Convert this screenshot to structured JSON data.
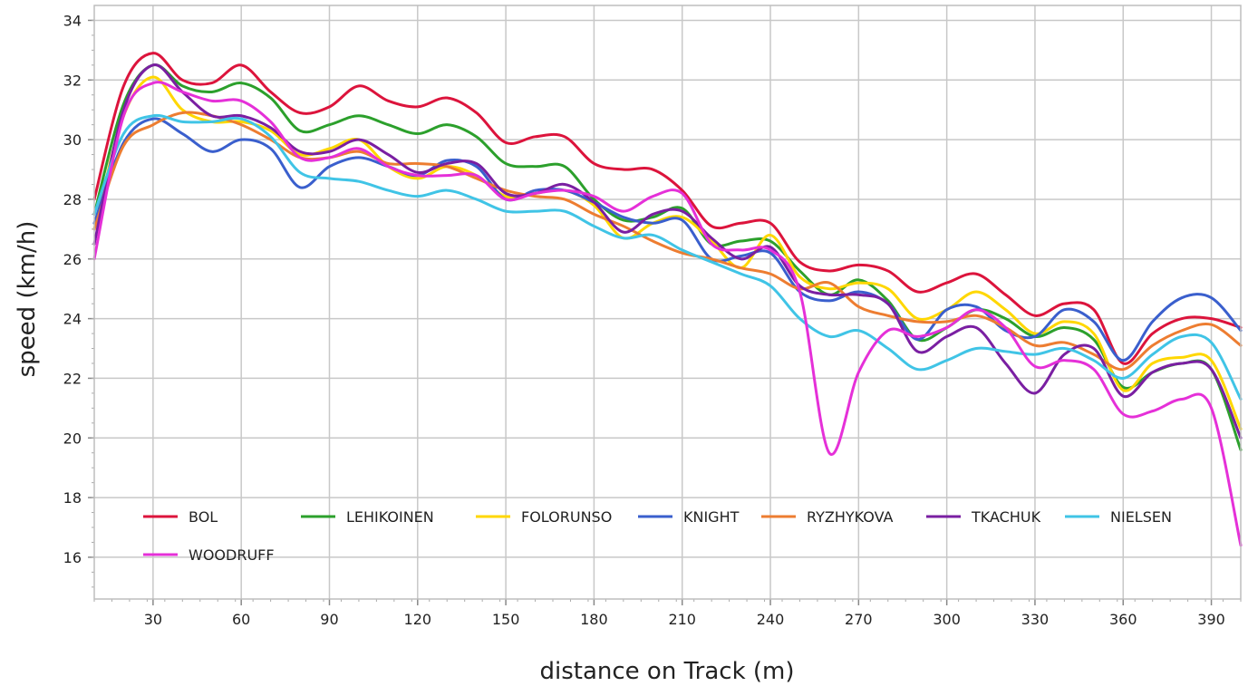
{
  "chart_data": {
    "type": "line",
    "xlabel": "distance on Track (m)",
    "ylabel": "speed (km/h)",
    "xlim": [
      10,
      400
    ],
    "ylim": [
      14.6,
      34.5
    ],
    "xticks": [
      30,
      60,
      90,
      120,
      150,
      180,
      210,
      240,
      270,
      300,
      330,
      360,
      390
    ],
    "yticks": [
      16,
      18,
      20,
      22,
      24,
      26,
      28,
      30,
      32,
      34
    ],
    "grid": true,
    "legend_position": "bottom-left",
    "x": [
      10,
      20,
      30,
      40,
      50,
      60,
      70,
      80,
      90,
      100,
      110,
      120,
      130,
      140,
      150,
      160,
      170,
      180,
      190,
      200,
      210,
      220,
      230,
      240,
      250,
      260,
      270,
      280,
      290,
      300,
      310,
      320,
      330,
      340,
      350,
      360,
      370,
      380,
      390,
      400
    ],
    "series": [
      {
        "name": "BOL",
        "color": "#dc143c",
        "values": [
          28.0,
          31.8,
          32.9,
          32.0,
          31.9,
          32.5,
          31.6,
          30.9,
          31.1,
          31.8,
          31.3,
          31.1,
          31.4,
          30.9,
          29.9,
          30.1,
          30.1,
          29.2,
          29.0,
          29.0,
          28.3,
          27.1,
          27.2,
          27.2,
          25.9,
          25.6,
          25.8,
          25.6,
          24.9,
          25.2,
          25.5,
          24.8,
          24.1,
          24.5,
          24.3,
          22.5,
          23.5,
          24.0,
          24.0,
          23.7
        ]
      },
      {
        "name": "LEHIKOINEN",
        "color": "#2ca02c",
        "values": [
          27.5,
          31.2,
          32.5,
          31.8,
          31.6,
          31.9,
          31.4,
          30.3,
          30.5,
          30.8,
          30.5,
          30.2,
          30.5,
          30.1,
          29.2,
          29.1,
          29.1,
          28.0,
          27.3,
          27.4,
          27.7,
          26.5,
          26.6,
          26.6,
          25.6,
          24.8,
          25.3,
          24.6,
          23.3,
          23.7,
          24.3,
          24.0,
          23.4,
          23.7,
          23.3,
          21.7,
          22.2,
          22.5,
          22.3,
          19.6
        ]
      },
      {
        "name": "FOLORUNSO",
        "color": "#ffd700",
        "values": [
          27.0,
          30.8,
          32.1,
          31.0,
          30.6,
          30.6,
          30.3,
          29.5,
          29.7,
          30.0,
          29.1,
          28.7,
          29.1,
          28.8,
          28.1,
          28.2,
          28.3,
          27.8,
          26.7,
          27.2,
          27.4,
          26.6,
          25.7,
          26.8,
          25.4,
          25.0,
          25.2,
          25.0,
          24.0,
          24.3,
          24.9,
          24.3,
          23.5,
          23.9,
          23.5,
          21.6,
          22.5,
          22.7,
          22.6,
          20.3
        ]
      },
      {
        "name": "KNIGHT",
        "color": "#3a5fcd",
        "values": [
          27.2,
          29.9,
          30.7,
          30.2,
          29.6,
          30.0,
          29.7,
          28.4,
          29.1,
          29.4,
          29.1,
          28.8,
          29.3,
          29.1,
          28.0,
          28.3,
          28.3,
          27.9,
          27.4,
          27.2,
          27.3,
          26.0,
          26.1,
          26.2,
          24.9,
          24.6,
          24.9,
          24.5,
          23.3,
          24.3,
          24.4,
          23.6,
          23.4,
          24.3,
          23.9,
          22.6,
          23.9,
          24.7,
          24.7,
          23.6
        ]
      },
      {
        "name": "RYZHYKOVA",
        "color": "#ed7d31",
        "values": [
          27.0,
          29.8,
          30.5,
          30.9,
          30.8,
          30.5,
          30.0,
          29.4,
          29.4,
          29.6,
          29.2,
          29.2,
          29.1,
          28.7,
          28.3,
          28.1,
          28.0,
          27.5,
          27.1,
          26.6,
          26.2,
          26.0,
          25.7,
          25.5,
          25.0,
          25.2,
          24.4,
          24.1,
          23.9,
          23.9,
          24.1,
          23.7,
          23.1,
          23.2,
          22.8,
          22.3,
          23.1,
          23.6,
          23.8,
          23.1
        ]
      },
      {
        "name": "TKACHUK",
        "color": "#7a1fa2",
        "values": [
          26.5,
          31.0,
          32.5,
          31.6,
          30.8,
          30.8,
          30.4,
          29.6,
          29.6,
          30.0,
          29.5,
          28.9,
          29.2,
          29.2,
          28.2,
          28.2,
          28.5,
          27.9,
          26.9,
          27.5,
          27.6,
          26.7,
          26.0,
          26.4,
          25.1,
          24.8,
          24.8,
          24.5,
          22.9,
          23.4,
          23.7,
          22.5,
          21.5,
          22.8,
          23.0,
          21.4,
          22.2,
          22.5,
          22.3,
          20.0
        ]
      },
      {
        "name": "NIELSEN",
        "color": "#40c4e6",
        "values": [
          27.5,
          30.2,
          30.8,
          30.6,
          30.6,
          30.7,
          30.1,
          28.9,
          28.7,
          28.6,
          28.3,
          28.1,
          28.3,
          28.0,
          27.6,
          27.6,
          27.6,
          27.1,
          26.7,
          26.8,
          26.3,
          25.9,
          25.5,
          25.1,
          24.0,
          23.4,
          23.6,
          23.0,
          22.3,
          22.6,
          23.0,
          22.9,
          22.8,
          23.0,
          22.6,
          22.0,
          22.8,
          23.4,
          23.2,
          21.3
        ]
      },
      {
        "name": "WOODRUFF",
        "color": "#e530d8",
        "values": [
          26.0,
          30.8,
          31.9,
          31.6,
          31.3,
          31.3,
          30.6,
          29.4,
          29.4,
          29.7,
          29.1,
          28.8,
          28.8,
          28.8,
          28.0,
          28.2,
          28.3,
          28.1,
          27.6,
          28.1,
          28.2,
          26.5,
          26.3,
          26.3,
          24.9,
          19.5,
          22.2,
          23.6,
          23.4,
          23.7,
          24.3,
          23.7,
          22.4,
          22.6,
          22.3,
          20.8,
          20.9,
          21.3,
          21.0,
          16.4
        ]
      }
    ]
  }
}
